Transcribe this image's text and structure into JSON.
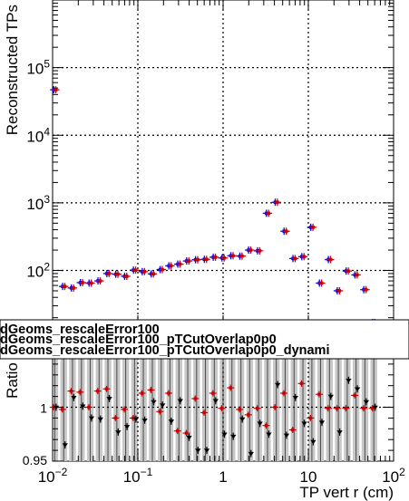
{
  "chart_data": [
    {
      "type": "scatter",
      "ylabel": "Reconstructed TPs",
      "xscale": "log",
      "yscale": "log",
      "xlim": [
        0.01,
        100
      ],
      "ylim": [
        15,
        1000000
      ],
      "grid": true,
      "x_tick_labels": [
        {
          "base": "10",
          "exp": "−2"
        },
        {
          "base": "10",
          "exp": "−1"
        },
        {
          "base": "1",
          "exp": ""
        },
        {
          "base": "10",
          "exp": ""
        },
        {
          "base": "10",
          "exp": "2"
        }
      ],
      "y_tick_labels": [
        {
          "base": "10",
          "exp": "2"
        },
        {
          "base": "10",
          "exp": "3"
        },
        {
          "base": "10",
          "exp": "4"
        },
        {
          "base": "10",
          "exp": "5"
        }
      ],
      "series": [
        {
          "color": "#0000ff",
          "x": [
            0.0106,
            0.0135,
            0.0171,
            0.0218,
            0.0276,
            0.0351,
            0.0446,
            0.0567,
            0.072,
            0.0915,
            0.116,
            0.148,
            0.188,
            0.238,
            0.303,
            0.385,
            0.489,
            0.621,
            0.789,
            1.0,
            1.27,
            1.62,
            2.05,
            2.61,
            3.32,
            4.21,
            5.35,
            6.8,
            8.64,
            11.0,
            13.9,
            17.7,
            22.5,
            28.6,
            36.3,
            46.1,
            58.6
          ],
          "values": [
            47000,
            58,
            55,
            66,
            65,
            70,
            90,
            88,
            82,
            101,
            96,
            89,
            103,
            117,
            124,
            138,
            144,
            146,
            157,
            153,
            165,
            163,
            200,
            195,
            700,
            1020,
            380,
            150,
            160,
            435,
            65,
            145,
            50,
            98,
            86,
            52,
            17
          ]
        },
        {
          "color": "#cc0000",
          "x": [
            0.0106,
            0.0135,
            0.0171,
            0.0218,
            0.0276,
            0.0351,
            0.0446,
            0.0567,
            0.072,
            0.0915,
            0.116,
            0.148,
            0.188,
            0.238,
            0.303,
            0.385,
            0.489,
            0.621,
            0.789,
            1.0,
            1.27,
            1.62,
            2.05,
            2.61,
            3.32,
            4.21,
            5.35,
            6.8,
            8.64,
            11.0,
            13.9,
            17.7,
            22.5,
            28.6,
            36.3,
            46.1,
            58.6
          ],
          "values": [
            47000,
            58,
            55,
            66,
            65,
            70,
            90,
            88,
            82,
            101,
            96,
            89,
            103,
            117,
            124,
            138,
            144,
            146,
            157,
            153,
            165,
            163,
            200,
            195,
            700,
            1020,
            380,
            150,
            160,
            435,
            65,
            145,
            50,
            98,
            86,
            52,
            17
          ]
        }
      ]
    },
    {
      "type": "scatter",
      "xlabel": "TP vert r (cm)",
      "ylabel": "Ratio",
      "xscale": "log",
      "xlim": [
        0.01,
        100
      ],
      "ylim": [
        0.95,
        1.05
      ],
      "grid": true,
      "y_tick_labels": [
        "1",
        "0.95"
      ],
      "legend": {
        "entries": [
          "dGeoms_rescaleError100",
          "dGeoms_rescaleError100_pTCutOverlap0p0",
          "dGeoms_rescaleError100_pTCutOverlap0p0_dynami"
        ]
      },
      "series": [
        {
          "color": "#cc0000",
          "x": [
            0.0106,
            0.0135,
            0.0171,
            0.0218,
            0.0276,
            0.0351,
            0.0446,
            0.0567,
            0.072,
            0.0915,
            0.116,
            0.148,
            0.188,
            0.238,
            0.303,
            0.385,
            0.489,
            0.621,
            0.789,
            1.0,
            1.27,
            1.62,
            2.05,
            2.61,
            3.32,
            4.21,
            5.35,
            6.8,
            8.64,
            11.0,
            13.9,
            17.7,
            22.5,
            28.6,
            36.3,
            46.1,
            58.6
          ],
          "values": [
            1.0,
            0.998,
            1.015,
            1.014,
            1.0,
            1.015,
            1.017,
            0.99,
            0.998,
            0.99,
            1.013,
            1.016,
            0.996,
            1.013,
            0.978,
            0.976,
            1.008,
            0.995,
            1.013,
            0.999,
            1.018,
            0.998,
            0.993,
            0.999,
            0.983,
            1.0,
            1.013,
            0.979,
            1.022,
            0.99,
            1.012,
            0.999,
            0.999,
            0.999,
            1.011,
            0.999,
            0.999
          ]
        },
        {
          "color": "#000000",
          "x": [
            0.0106,
            0.0135,
            0.0171,
            0.0218,
            0.0276,
            0.0351,
            0.0446,
            0.0567,
            0.072,
            0.0915,
            0.116,
            0.148,
            0.188,
            0.238,
            0.303,
            0.385,
            0.489,
            0.621,
            0.789,
            1.0,
            1.27,
            1.62,
            2.05,
            2.61,
            3.32,
            4.21,
            5.35,
            6.8,
            8.64,
            11.0,
            13.9,
            17.7,
            22.5,
            28.6,
            36.3,
            46.1,
            58.6
          ],
          "values": [
            1.0,
            0.965,
            1.009,
            1.001,
            0.99,
            0.989,
            1.008,
            0.977,
            0.982,
            0.989,
            0.988,
            1.005,
            1.002,
            0.987,
            1.006,
            0.972,
            0.96,
            0.96,
            1.006,
            0.975,
            0.973,
            0.989,
            0.957,
            0.985,
            0.975,
            1.021,
            0.974,
            1.009,
            0.985,
            0.968,
            0.986,
            1.01,
            0.977,
            1.025,
            1.017,
            1.005,
            1.0
          ]
        }
      ]
    }
  ]
}
